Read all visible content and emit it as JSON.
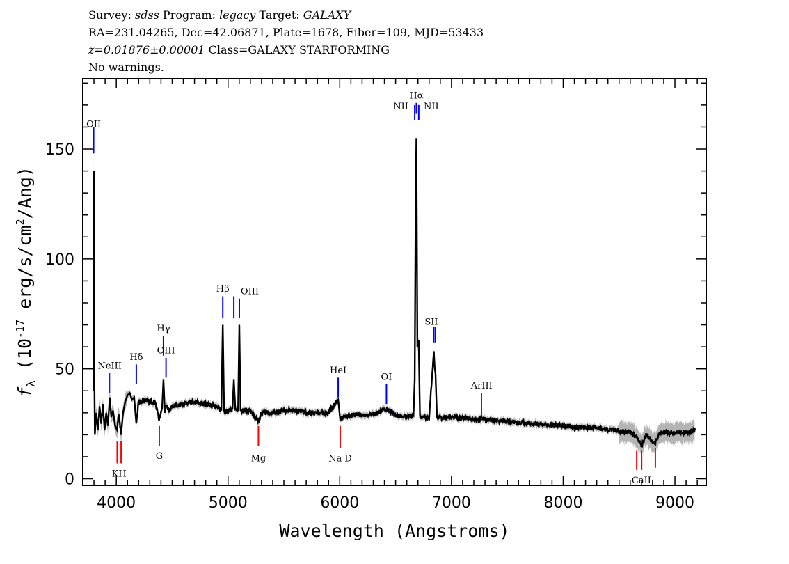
{
  "header": {
    "survey_label": "Survey:",
    "survey": "sdss",
    "program_label": "Program:",
    "program": "legacy",
    "target_label": "Target:",
    "target": "GALAXY",
    "line2": "RA=231.04265, Dec=42.06871, Plate=1678, Fiber=109, MJD=53433",
    "redshift": "z=0.01876±0.00001",
    "class": "Class=GALAXY STARFORMING",
    "warnings": "No warnings."
  },
  "chart_data": {
    "type": "line",
    "xlabel": "Wavelength (Angstroms)",
    "ylabel": {
      "symbol": "f",
      "sub": "λ",
      "prefix": " (10",
      "exp": "-17",
      "mid": " erg/s/cm",
      "exp2": "2",
      "suffix": "/Ang)"
    },
    "xlim": [
      3700,
      9280
    ],
    "ylim": [
      -3,
      182
    ],
    "xticks": [
      4000,
      5000,
      6000,
      7000,
      8000,
      9000
    ],
    "yticks": [
      0,
      50,
      100,
      150
    ],
    "grid": false,
    "colors": {
      "spectrum": "#000000",
      "error": "#b4b4b4",
      "emission": "#0000ff",
      "absorption": "#ff0000",
      "unlabeled": "#000000"
    },
    "spectrum": [
      [
        3797,
        40
      ],
      [
        3799,
        140
      ],
      [
        3801,
        100
      ],
      [
        3804,
        45
      ],
      [
        3808,
        20
      ],
      [
        3820,
        30
      ],
      [
        3835,
        22
      ],
      [
        3850,
        33
      ],
      [
        3865,
        25
      ],
      [
        3880,
        34
      ],
      [
        3895,
        22
      ],
      [
        3910,
        30
      ],
      [
        3925,
        24
      ],
      [
        3941,
        37
      ],
      [
        3955,
        28
      ],
      [
        3970,
        31
      ],
      [
        3990,
        24
      ],
      [
        4008,
        22
      ],
      [
        4020,
        30
      ],
      [
        4043,
        20
      ],
      [
        4060,
        30
      ],
      [
        4080,
        35
      ],
      [
        4100,
        38
      ],
      [
        4120,
        39
      ],
      [
        4140,
        36
      ],
      [
        4160,
        37
      ],
      [
        4179,
        25
      ],
      [
        4200,
        35
      ],
      [
        4250,
        36
      ],
      [
        4300,
        35
      ],
      [
        4350,
        34
      ],
      [
        4385,
        27
      ],
      [
        4410,
        32
      ],
      [
        4422,
        45
      ],
      [
        4435,
        30
      ],
      [
        4445,
        34
      ],
      [
        4470,
        31
      ],
      [
        4500,
        33
      ],
      [
        4600,
        34
      ],
      [
        4700,
        35
      ],
      [
        4800,
        34
      ],
      [
        4900,
        33
      ],
      [
        4940,
        31
      ],
      [
        4953,
        70
      ],
      [
        4965,
        30
      ],
      [
        5000,
        31
      ],
      [
        5040,
        32
      ],
      [
        5052,
        45
      ],
      [
        5065,
        32
      ],
      [
        5090,
        31
      ],
      [
        5101,
        70
      ],
      [
        5112,
        31
      ],
      [
        5200,
        31
      ],
      [
        5272,
        26
      ],
      [
        5300,
        30
      ],
      [
        5400,
        30
      ],
      [
        5500,
        31
      ],
      [
        5600,
        31
      ],
      [
        5700,
        30
      ],
      [
        5800,
        30
      ],
      [
        5900,
        30
      ],
      [
        5986,
        36
      ],
      [
        6004,
        27
      ],
      [
        6100,
        29
      ],
      [
        6200,
        29
      ],
      [
        6300,
        29
      ],
      [
        6418,
        32
      ],
      [
        6500,
        29
      ],
      [
        6600,
        28
      ],
      [
        6660,
        29
      ],
      [
        6671,
        45
      ],
      [
        6680,
        129
      ],
      [
        6686,
        155
      ],
      [
        6695,
        60
      ],
      [
        6707,
        63
      ],
      [
        6718,
        28
      ],
      [
        6800,
        28
      ],
      [
        6842,
        58
      ],
      [
        6850,
        50
      ],
      [
        6857,
        48
      ],
      [
        6870,
        28
      ],
      [
        7000,
        28
      ],
      [
        7270,
        27
      ],
      [
        7500,
        26
      ],
      [
        8000,
        24
      ],
      [
        8300,
        23
      ],
      [
        8600,
        21
      ],
      [
        8658,
        19
      ],
      [
        8702,
        15
      ],
      [
        8740,
        20
      ],
      [
        8825,
        16
      ],
      [
        8860,
        21
      ],
      [
        9000,
        21
      ],
      [
        9100,
        21
      ],
      [
        9180,
        22
      ]
    ],
    "lines": [
      {
        "name": "OII",
        "wave": 3797,
        "kind": "emission",
        "range": [
          148,
          160
        ],
        "label_y": 160
      },
      {
        "name": "NeIII",
        "wave": 3941,
        "kind": "emission-thin",
        "range": [
          39,
          48
        ],
        "label_y": 50
      },
      {
        "name": "Hδ",
        "wave": 4179,
        "kind": "emission",
        "range": [
          43,
          52
        ],
        "label_y": 54
      },
      {
        "name": "Hγ",
        "wave": 4422,
        "kind": "emission",
        "range": [
          56,
          65
        ],
        "label_y": 67
      },
      {
        "name": "OIII",
        "wave": 4445,
        "kind": "emission",
        "range": [
          46,
          55
        ],
        "label_y": 57
      },
      {
        "name": "Hβ",
        "wave": 4953,
        "kind": "emission",
        "range": [
          73,
          83
        ],
        "label_y": 85
      },
      {
        "name": "",
        "wave": 5052,
        "kind": "emission",
        "range": [
          73,
          83
        ]
      },
      {
        "name": "OIII",
        "wave": 5101,
        "kind": "emission",
        "range": [
          73,
          82
        ],
        "label_y": 84,
        "label_offset": 15
      },
      {
        "name": "HeI",
        "wave": 5986,
        "kind": "emission",
        "range": [
          37,
          46
        ],
        "label_y": 48
      },
      {
        "name": "OI",
        "wave": 6418,
        "kind": "emission",
        "range": [
          34,
          43
        ],
        "label_y": 45
      },
      {
        "name": "NII",
        "wave": 6671,
        "kind": "emission",
        "range": [
          163,
          170
        ],
        "label_y": 168,
        "label_offset": -20
      },
      {
        "name": "Hα",
        "wave": 6686,
        "kind": "emission",
        "range": [
          166,
          171
        ],
        "label_y": 173
      },
      {
        "name": "NII",
        "wave": 6707,
        "kind": "emission",
        "range": [
          163,
          170
        ],
        "label_y": 168,
        "label_offset": 18
      },
      {
        "name": "",
        "wave": 6842,
        "kind": "emission",
        "range": [
          62,
          69
        ]
      },
      {
        "name": "SII",
        "wave": 6857,
        "kind": "emission",
        "range": [
          62,
          69
        ],
        "label_y": 70,
        "label_offset": -6
      },
      {
        "name": "ArIII",
        "wave": 7270,
        "kind": "emission-thin",
        "range": [
          28,
          39
        ],
        "label_y": 41
      },
      {
        "name": "",
        "wave": 4008,
        "kind": "absorption",
        "range": [
          7,
          17
        ]
      },
      {
        "name": "KH",
        "wave": 4025,
        "kind": "label",
        "label_y": 1
      },
      {
        "name": "",
        "wave": 4043,
        "kind": "absorption",
        "range": [
          7,
          17
        ]
      },
      {
        "name": "G",
        "wave": 4385,
        "kind": "absorption",
        "range": [
          15,
          24
        ],
        "label_y": 9
      },
      {
        "name": "Mg",
        "wave": 5272,
        "kind": "absorption",
        "range": [
          15,
          24
        ],
        "label_y": 8
      },
      {
        "name": "Na D",
        "wave": 6004,
        "kind": "absorption",
        "range": [
          14,
          24
        ],
        "label_y": 8
      },
      {
        "name": "",
        "wave": 8658,
        "kind": "absorption",
        "range": [
          4,
          13
        ]
      },
      {
        "name": "CaII",
        "wave": 8700,
        "kind": "label",
        "label_y": -2
      },
      {
        "name": "",
        "wave": 8702,
        "kind": "absorption",
        "range": [
          4,
          13
        ]
      },
      {
        "name": "",
        "wave": 8825,
        "kind": "absorption",
        "range": [
          5,
          14
        ]
      }
    ]
  }
}
